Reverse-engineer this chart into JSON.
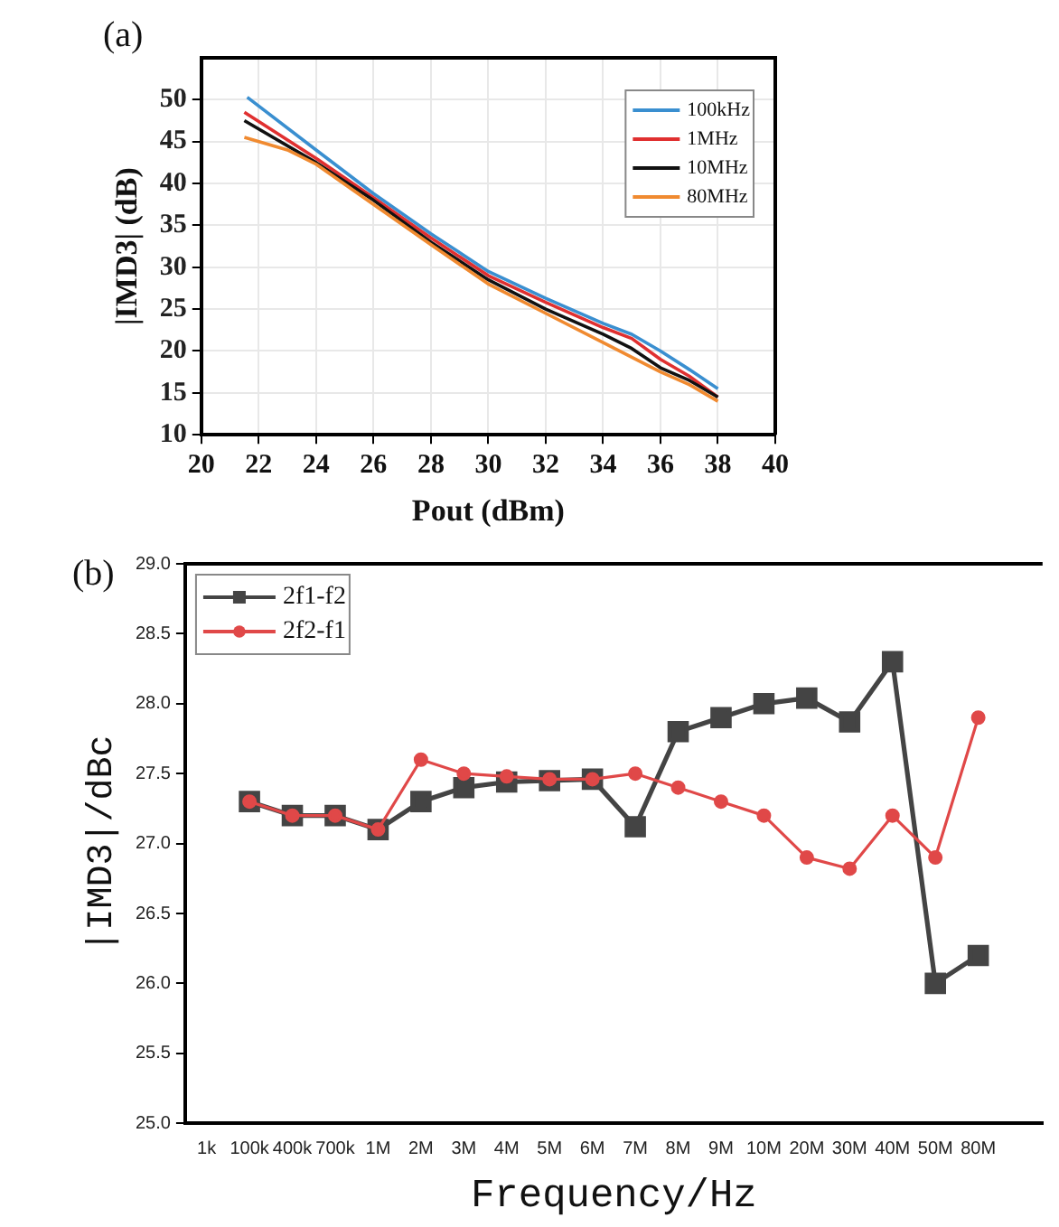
{
  "chart_data": [
    {
      "type": "line",
      "title": "(a)",
      "xlabel": "Pout (dBm)",
      "ylabel": "|IMD3| (dB)",
      "xlim": [
        20,
        40
      ],
      "xticks": [
        20,
        22,
        24,
        26,
        28,
        30,
        32,
        34,
        36,
        38,
        40
      ],
      "ylim": [
        10,
        55
      ],
      "yticks": [
        10,
        15,
        20,
        25,
        30,
        35,
        40,
        45,
        50
      ],
      "grid": true,
      "legend": "top right",
      "marker": "none",
      "line_style": "solid",
      "series": [
        {
          "name": "100kHz",
          "color": "#3a8fd0",
          "x": [
            21.6,
            24,
            26,
            28,
            30,
            32,
            34,
            35,
            36,
            37,
            38
          ],
          "values": [
            50.3,
            44,
            38.8,
            34,
            29.5,
            26.3,
            23.3,
            22,
            20,
            17.8,
            15.5
          ]
        },
        {
          "name": "1MHz",
          "color": "#e03030",
          "x": [
            21.5,
            24,
            26,
            28,
            30,
            32,
            34,
            35,
            36,
            37,
            38
          ],
          "values": [
            48.5,
            43,
            38.3,
            33.5,
            29,
            25.8,
            22.8,
            21.5,
            19,
            17,
            14.5
          ]
        },
        {
          "name": "10MHz",
          "color": "#111111",
          "x": [
            21.5,
            24,
            26,
            28,
            30,
            32,
            34,
            35,
            36,
            37,
            38
          ],
          "values": [
            47.5,
            42.5,
            38,
            33,
            28.5,
            25,
            22,
            20.3,
            18,
            16.5,
            14.5
          ]
        },
        {
          "name": "80MHz",
          "color": "#f08a30",
          "x": [
            21.5,
            23,
            24,
            26,
            28,
            30,
            32,
            34,
            36,
            37,
            38
          ],
          "values": [
            45.5,
            44,
            42.3,
            37.5,
            32.7,
            28,
            24.5,
            21,
            17.5,
            16,
            14
          ]
        }
      ]
    },
    {
      "type": "line",
      "title": "(b)",
      "xlabel": "Frequency/Hz",
      "ylabel": "|IMD3|/dBc",
      "categories": [
        "1k",
        "100k",
        "400k",
        "700k",
        "1M",
        "2M",
        "3M",
        "4M",
        "5M",
        "6M",
        "7M",
        "8M",
        "9M",
        "10M",
        "20M",
        "30M",
        "40M",
        "50M",
        "80M",
        null
      ],
      "ylim": [
        25,
        29
      ],
      "yticks": [
        {
          "value": 25,
          "label": "25.0"
        },
        {
          "value": 25.5,
          "label": "25.5"
        },
        {
          "value": 26,
          "label": "26.0"
        },
        {
          "value": 26.5,
          "label": "26.5"
        },
        {
          "value": 27,
          "label": "27.0"
        },
        {
          "value": 27.5,
          "label": "27.5"
        },
        {
          "value": 28,
          "label": "28.0"
        },
        {
          "value": 28.5,
          "label": "28.5"
        },
        {
          "value": 29,
          "label": "29.0"
        }
      ],
      "grid": false,
      "legend": "top left",
      "line_style": "solid",
      "series": [
        {
          "name": "2f1-f2",
          "color": "#444444",
          "marker": "square",
          "values": [
            null,
            27.3,
            27.2,
            27.2,
            27.1,
            27.3,
            27.4,
            27.44,
            27.45,
            27.46,
            27.12,
            27.8,
            27.9,
            28.0,
            28.04,
            27.87,
            28.3,
            26.0,
            26.2,
            null
          ]
        },
        {
          "name": "2f2-f1",
          "color": "#e04848",
          "marker": "circle",
          "values": [
            null,
            27.3,
            27.2,
            27.2,
            27.1,
            27.6,
            27.5,
            27.48,
            27.46,
            27.46,
            27.5,
            27.4,
            27.3,
            27.2,
            26.9,
            26.82,
            27.2,
            26.9,
            27.9,
            null
          ]
        }
      ]
    }
  ]
}
